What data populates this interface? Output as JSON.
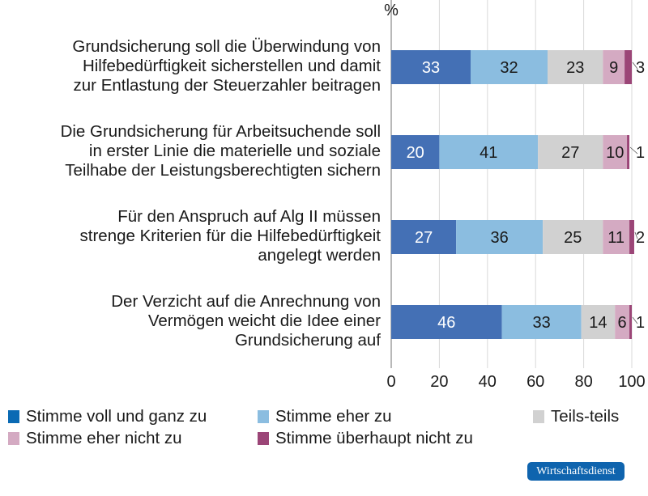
{
  "chart_data": {
    "type": "bar",
    "orientation": "horizontal",
    "stacked": true,
    "unit_label": "%",
    "categories": [
      "Grundsicherung soll die Überwindung von Hilfebedürftigkeit sicherstellen und damit zur Entlastung der Steuerzahler beitragen",
      "Die Grundsicherung für Arbeitsuchende soll in erster Linie die materielle und soziale Teilhabe der Leistungsberechtigten sichern",
      "Für den Anspruch auf Alg II müssen strenge Kriterien für die Hilfebedürftigkeit angelegt werden",
      "Der Verzicht auf die Anrechnung von Vermögen weicht die Idee einer Grundsicherung auf"
    ],
    "category_lines": [
      [
        "Grundsicherung soll die Überwindung von",
        "Hilfebedürftigkeit sicherstellen und damit",
        "zur Entlastung der Steuerzahler beitragen"
      ],
      [
        "Die Grundsicherung für Arbeitsuchende soll",
        "in erster Linie die materielle und soziale",
        "Teilhabe der Leistungsberechtigten sichern"
      ],
      [
        "Für den Anspruch auf Alg II müssen",
        "strenge Kriterien für die Hilfebedürftigkeit",
        "angelegt werden"
      ],
      [
        "Der Verzicht auf die Anrechnung von",
        "Vermögen weicht die Idee einer",
        "Grundsicherung auf"
      ]
    ],
    "series": [
      {
        "name": "Stimme voll und ganz zu",
        "color": "#4470b5",
        "values": [
          33,
          20,
          27,
          46
        ]
      },
      {
        "name": "Stimme eher zu",
        "color": "#8bbde0",
        "values": [
          32,
          41,
          36,
          33
        ]
      },
      {
        "name": "Teils-teils",
        "color": "#d1d1d1",
        "values": [
          23,
          27,
          25,
          14
        ]
      },
      {
        "name": "Stimme eher nicht zu",
        "color": "#d4aac2",
        "values": [
          9,
          10,
          11,
          6
        ]
      },
      {
        "name": "Stimme überhaupt nicht zu",
        "color": "#9b4577",
        "values": [
          3,
          1,
          2,
          1
        ]
      }
    ],
    "xlim": [
      0,
      100
    ],
    "xticks": [
      0,
      20,
      40,
      60,
      80,
      100
    ],
    "grid": true,
    "legend_position": "bottom"
  },
  "legend_swatch_first": "#0a6ab4",
  "badge": "Wirtschaftsdienst"
}
